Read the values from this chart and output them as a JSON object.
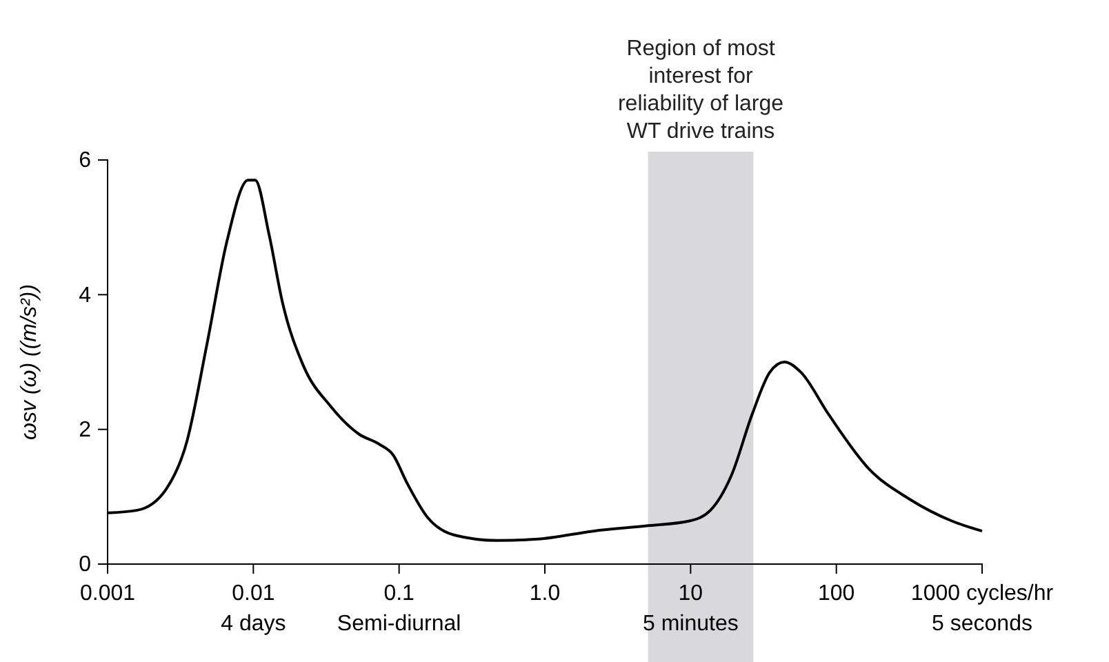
{
  "chart_data": {
    "type": "line",
    "ylabel": "ωsv (ω) ((m/s²))",
    "log": "x",
    "xlim": [
      0.001,
      1000
    ],
    "xticks": [
      {
        "value": 0.001,
        "label": "0.001"
      },
      {
        "value": 0.01,
        "label": "0.01\n4 days"
      },
      {
        "value": 0.1,
        "label": "0.1\nSemi-diurnal"
      },
      {
        "value": 1,
        "label": "1.0"
      },
      {
        "value": 10,
        "label": "10\n5 minutes"
      },
      {
        "value": 100,
        "label": "100"
      },
      {
        "value": 1000,
        "label": "1000 cycles/hr\n5 seconds"
      }
    ],
    "ylim": [
      0,
      6
    ],
    "yticks": [
      0,
      2,
      4,
      6
    ],
    "grid": false,
    "marker": "none",
    "line_style": "solid",
    "bands": [
      {
        "axis": "x",
        "from": 5.1,
        "to": 27,
        "label": "Region of most interest for reliability of large WT drive trains",
        "color": "#d9d9db"
      }
    ],
    "series": [
      {
        "color": "#000000",
        "x": [
          0.001,
          0.0016,
          0.0025,
          0.0035,
          0.0048,
          0.0066,
          0.0092,
          0.0103,
          0.0128,
          0.0159,
          0.022,
          0.034,
          0.053,
          0.073,
          0.091,
          0.113,
          0.156,
          0.24,
          0.47,
          0.89,
          2.15,
          5.1,
          9.8,
          13.7,
          19,
          26.5,
          35,
          44,
          57,
          88,
          168,
          320,
          620,
          1000
        ],
        "values": [
          0.76,
          0.8,
          1.1,
          1.82,
          3.26,
          4.8,
          5.7,
          5.7,
          4.9,
          3.87,
          2.95,
          2.34,
          1.93,
          1.78,
          1.62,
          1.21,
          0.7,
          0.43,
          0.35,
          0.37,
          0.49,
          0.57,
          0.64,
          0.8,
          1.31,
          2.23,
          2.85,
          3.0,
          2.85,
          2.23,
          1.41,
          0.96,
          0.64,
          0.49
        ]
      }
    ]
  }
}
